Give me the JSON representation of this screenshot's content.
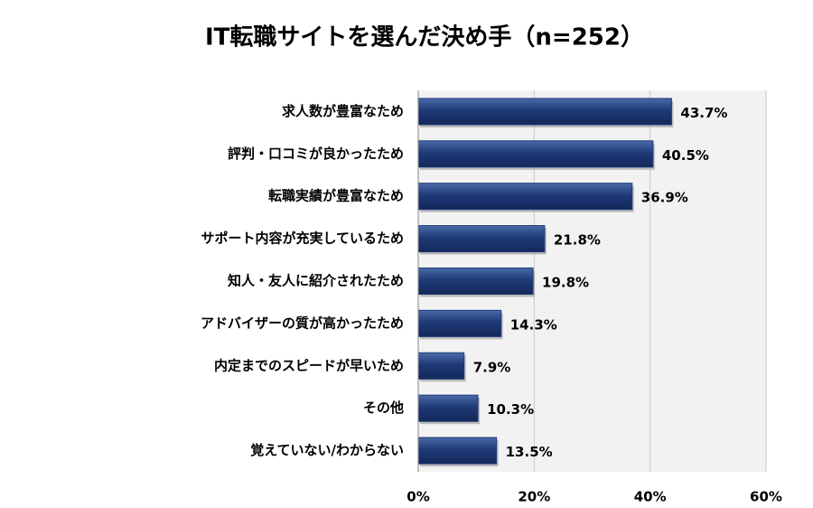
{
  "chart_data": {
    "type": "bar",
    "orientation": "horizontal",
    "title": "IT転職サイトを選んだ決め手（n=252）",
    "categories": [
      "求人数が豊富なため",
      "評判・口コミが良かったため",
      "転職実績が豊富なため",
      "サポート内容が充実しているため",
      "知人・友人に紹介されたため",
      "アドバイザーの質が高かったため",
      "内定までのスピードが早いため",
      "その他",
      "覚えていない/わからない"
    ],
    "values": [
      43.7,
      40.5,
      36.9,
      21.8,
      19.8,
      14.3,
      7.9,
      10.3,
      13.5
    ],
    "value_labels": [
      "43.7%",
      "40.5%",
      "36.9%",
      "21.8%",
      "19.8%",
      "14.3%",
      "7.9%",
      "10.3%",
      "13.5%"
    ],
    "color": "#1f3a78",
    "xlim": [
      0,
      60
    ],
    "xticks": [
      {
        "value": 0,
        "label": "0%"
      },
      {
        "value": 20,
        "label": "20%"
      },
      {
        "value": 40,
        "label": "40%"
      },
      {
        "value": 60,
        "label": "60%"
      }
    ],
    "grid": true
  }
}
